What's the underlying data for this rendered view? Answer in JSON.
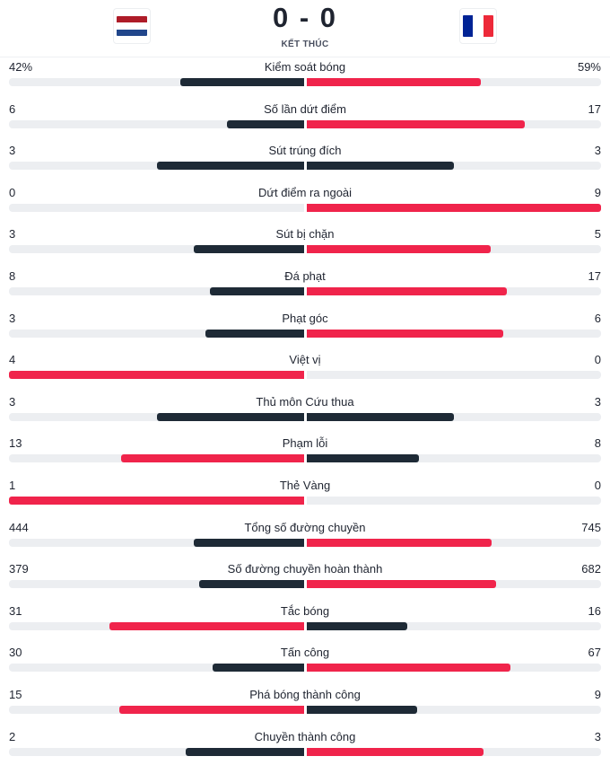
{
  "match": {
    "score": "0 - 0",
    "status": "KẾT THÚC",
    "home_flag_icon": "netherlands-flag-icon",
    "away_flag_icon": "france-flag-icon",
    "home_flag_colors": [
      "#ae1c28",
      "#ffffff",
      "#21468b"
    ],
    "away_flag_colors": [
      "#002395",
      "#ffffff",
      "#ed2939"
    ]
  },
  "colors": {
    "leader": "#f0244b",
    "trailer": "#1e2a36",
    "track": "#eceef1"
  },
  "stats": [
    {
      "label": "Kiểm soát bóng",
      "home": "42%",
      "away": "59%",
      "home_share": 0.42,
      "away_share": 0.59
    },
    {
      "label": "Số lần dứt điểm",
      "home": "6",
      "away": "17",
      "home_share": 0.26,
      "away_share": 0.74
    },
    {
      "label": "Sút trúng đích",
      "home": "3",
      "away": "3",
      "home_share": 0.5,
      "away_share": 0.5
    },
    {
      "label": "Dứt điểm ra ngoài",
      "home": "0",
      "away": "9",
      "home_share": 0.0,
      "away_share": 1.0
    },
    {
      "label": "Sút bị chặn",
      "home": "3",
      "away": "5",
      "home_share": 0.375,
      "away_share": 0.625
    },
    {
      "label": "Đá phạt",
      "home": "8",
      "away": "17",
      "home_share": 0.32,
      "away_share": 0.68
    },
    {
      "label": "Phạt góc",
      "home": "3",
      "away": "6",
      "home_share": 0.333,
      "away_share": 0.667
    },
    {
      "label": "Việt vị",
      "home": "4",
      "away": "0",
      "home_share": 1.0,
      "away_share": 0.0
    },
    {
      "label": "Thủ môn Cứu thua",
      "home": "3",
      "away": "3",
      "home_share": 0.5,
      "away_share": 0.5
    },
    {
      "label": "Phạm lỗi",
      "home": "13",
      "away": "8",
      "home_share": 0.619,
      "away_share": 0.381
    },
    {
      "label": "Thẻ Vàng",
      "home": "1",
      "away": "0",
      "home_share": 1.0,
      "away_share": 0.0
    },
    {
      "label": "Tổng số đường chuyền",
      "home": "444",
      "away": "745",
      "home_share": 0.373,
      "away_share": 0.627
    },
    {
      "label": "Số đường chuyền hoàn thành",
      "home": "379",
      "away": "682",
      "home_share": 0.357,
      "away_share": 0.643
    },
    {
      "label": "Tắc bóng",
      "home": "31",
      "away": "16",
      "home_share": 0.66,
      "away_share": 0.34
    },
    {
      "label": "Tấn công",
      "home": "30",
      "away": "67",
      "home_share": 0.309,
      "away_share": 0.691
    },
    {
      "label": "Phá bóng thành công",
      "home": "15",
      "away": "9",
      "home_share": 0.625,
      "away_share": 0.375
    },
    {
      "label": "Chuyền thành công",
      "home": "2",
      "away": "3",
      "home_share": 0.4,
      "away_share": 0.6
    }
  ]
}
